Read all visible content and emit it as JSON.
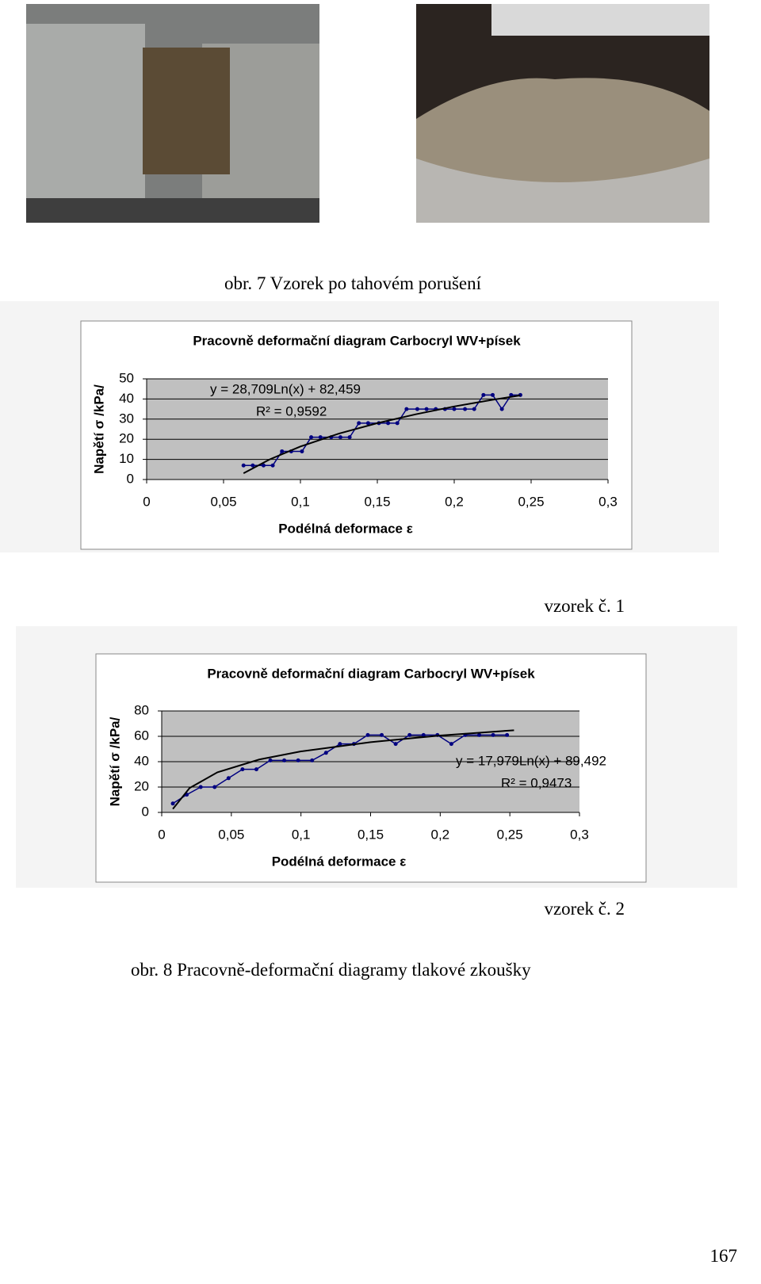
{
  "captions": {
    "figure7": "obr. 7 Vzorek po tahovém porušení",
    "sample1": "vzorek č. 1",
    "sample2": "vzorek č. 2",
    "figure8": "obr. 8 Pracovně-deformační diagramy tlakové zkoušky"
  },
  "page_number": "167",
  "chart_data": [
    {
      "type": "line",
      "title": "Pracovně deformační diagram Carbocryl WV+písek",
      "x_label": "Podélná deformace ε",
      "y_label": "Napětí σ /kPa/",
      "xlim": [
        0,
        0.3
      ],
      "xticks": [
        0,
        {
          "value": 0.05,
          "label": "0,05"
        },
        {
          "value": 0.1,
          "label": "0,1"
        },
        {
          "value": 0.15,
          "label": "0,15"
        },
        {
          "value": 0.2,
          "label": "0,2"
        },
        {
          "value": 0.25,
          "label": "0,25"
        },
        {
          "value": 0.3,
          "label": "0,3"
        }
      ],
      "ylim": [
        0,
        50
      ],
      "yticks": [
        0,
        10,
        20,
        30,
        40,
        50
      ],
      "grid": true,
      "series": [
        {
          "color": "#000080",
          "markers": true,
          "x": [
            0.063,
            0.069,
            0.076,
            0.082,
            0.088,
            0.094,
            0.101,
            0.107,
            0.113,
            0.12,
            0.126,
            0.132,
            0.138,
            0.144,
            0.151,
            0.157,
            0.163,
            0.169,
            0.176,
            0.182,
            0.188,
            0.194,
            0.2,
            0.207,
            0.213,
            0.219,
            0.225,
            0.231,
            0.237,
            0.243
          ],
          "values": [
            7,
            7,
            7,
            7,
            14,
            14,
            14,
            21,
            21,
            21,
            21,
            21,
            28,
            28,
            28,
            28,
            28,
            35,
            35,
            35,
            35,
            35,
            35,
            35,
            35,
            42,
            42,
            35,
            42,
            42
          ]
        },
        {
          "color": "#000000",
          "markers": false,
          "x": [
            0.063,
            0.08,
            0.1,
            0.125,
            0.15,
            0.175,
            0.2,
            0.225,
            0.243
          ],
          "values": [
            3.1,
            10.0,
            16.4,
            22.8,
            28.0,
            32.4,
            36.3,
            39.6,
            41.8
          ]
        }
      ],
      "annotations": [
        "y = 28,709Ln(x) + 82,459",
        "R² = 0,9592"
      ]
    },
    {
      "type": "line",
      "title": "Pracovně deformační diagram Carbocryl WV+písek",
      "x_label": "Podélná deformace ε",
      "y_label": "Napětí σ /kPa/",
      "xlim": [
        0,
        0.3
      ],
      "xticks": [
        0,
        {
          "value": 0.05,
          "label": "0,05"
        },
        {
          "value": 0.1,
          "label": "0,1"
        },
        {
          "value": 0.15,
          "label": "0,15"
        },
        {
          "value": 0.2,
          "label": "0,2"
        },
        {
          "value": 0.25,
          "label": "0,25"
        },
        {
          "value": 0.3,
          "label": "0,3"
        }
      ],
      "ylim": [
        0,
        80
      ],
      "yticks": [
        0,
        20,
        40,
        60,
        80
      ],
      "grid": true,
      "series": [
        {
          "color": "#000080",
          "markers": true,
          "x": [
            0.008,
            0.018,
            0.028,
            0.038,
            0.048,
            0.058,
            0.068,
            0.078,
            0.088,
            0.098,
            0.108,
            0.118,
            0.128,
            0.138,
            0.148,
            0.158,
            0.168,
            0.178,
            0.188,
            0.198,
            0.208,
            0.218,
            0.228,
            0.238,
            0.248
          ],
          "values": [
            7,
            14,
            20,
            20,
            27,
            34,
            34,
            41,
            41,
            41,
            41,
            47,
            54,
            54,
            61,
            61,
            54,
            61,
            61,
            61,
            54,
            61,
            61,
            61,
            61
          ]
        },
        {
          "color": "#000000",
          "markers": false,
          "x": [
            0.008,
            0.02,
            0.04,
            0.07,
            0.1,
            0.15,
            0.2,
            0.253
          ],
          "values": [
            2.7,
            19.2,
            31.6,
            41.7,
            48.1,
            55.4,
            60.6,
            64.8
          ]
        }
      ],
      "annotations": [
        "y = 17,979Ln(x) + 89,492",
        "R² = 0,9473"
      ]
    }
  ]
}
